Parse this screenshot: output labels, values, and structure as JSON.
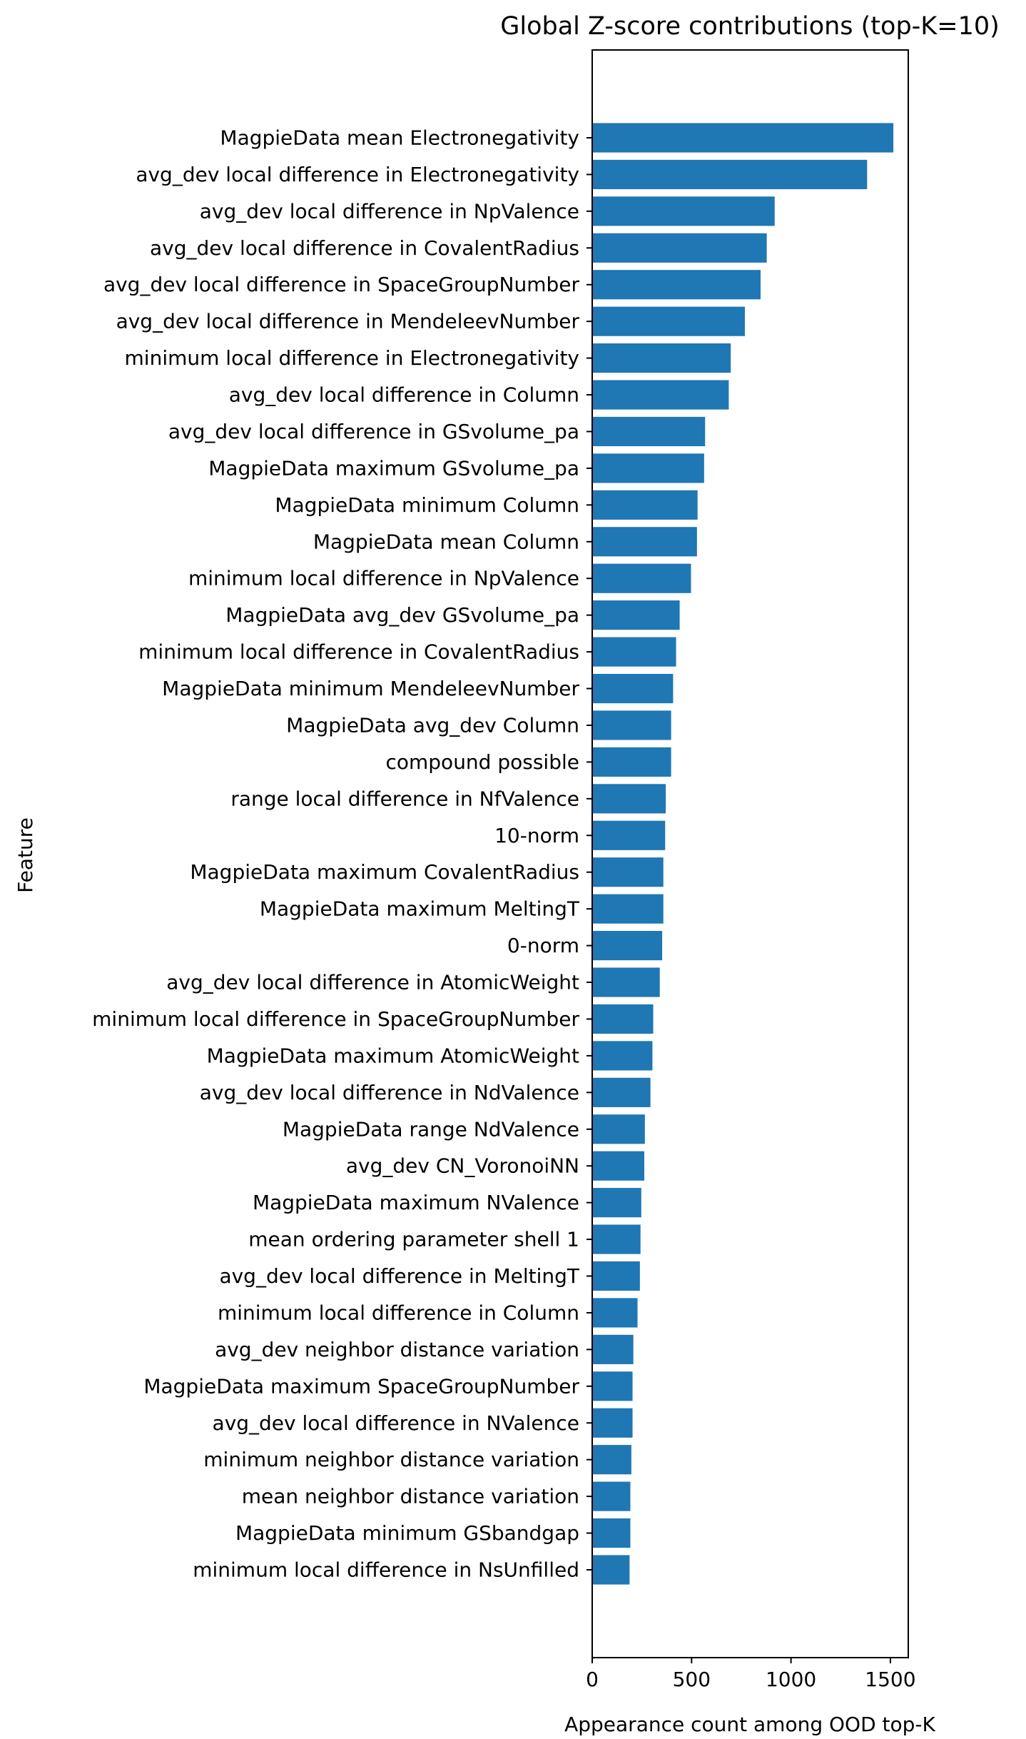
{
  "chart_data": {
    "type": "bar",
    "orientation": "horizontal",
    "title": "Global Z-score contributions (top-K=10)",
    "xlabel": "Appearance count among OOD top-K",
    "ylabel": "Feature",
    "xlim": [
      0,
      1590
    ],
    "xticks": [
      0,
      500,
      1000,
      1500
    ],
    "bar_color": "#1f77b4",
    "grid": false,
    "categories": [
      "MagpieData mean Electronegativity",
      "avg_dev local difference in Electronegativity",
      "avg_dev local difference in NpValence",
      "avg_dev local difference in CovalentRadius",
      "avg_dev local difference in SpaceGroupNumber",
      "avg_dev local difference in MendeleevNumber",
      "minimum local difference in Electronegativity",
      "avg_dev local difference in Column",
      "avg_dev local difference in GSvolume_pa",
      "MagpieData maximum GSvolume_pa",
      "MagpieData minimum Column",
      "MagpieData mean Column",
      "minimum local difference in NpValence",
      "MagpieData avg_dev GSvolume_pa",
      "minimum local difference in CovalentRadius",
      "MagpieData minimum MendeleevNumber",
      "MagpieData avg_dev Column",
      "compound possible",
      "range local difference in NfValence",
      "10-norm",
      "MagpieData maximum CovalentRadius",
      "MagpieData maximum MeltingT",
      "0-norm",
      "avg_dev local difference in AtomicWeight",
      "minimum local difference in SpaceGroupNumber",
      "MagpieData maximum AtomicWeight",
      "avg_dev local difference in NdValence",
      "MagpieData range NdValence",
      "avg_dev CN_VoronoiNN",
      "MagpieData maximum NValence",
      "mean ordering parameter shell 1",
      "avg_dev local difference in MeltingT",
      "minimum local difference in Column",
      "avg_dev neighbor distance variation",
      "MagpieData maximum SpaceGroupNumber",
      "avg_dev local difference in NValence",
      "minimum neighbor distance variation",
      "mean neighbor distance variation",
      "MagpieData minimum GSbandgap",
      "minimum local difference in NsUnfilled"
    ],
    "values": [
      1515,
      1383,
      918,
      878,
      847,
      768,
      697,
      687,
      568,
      563,
      530,
      527,
      497,
      440,
      422,
      407,
      397,
      397,
      370,
      367,
      358,
      358,
      352,
      340,
      307,
      303,
      293,
      265,
      262,
      247,
      243,
      240,
      228,
      207,
      203,
      203,
      197,
      192,
      192,
      188
    ]
  }
}
